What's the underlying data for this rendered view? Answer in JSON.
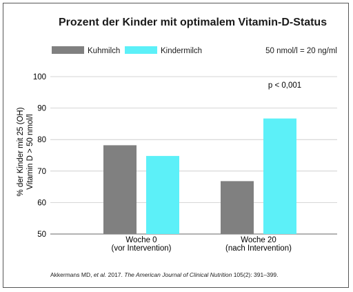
{
  "chart_data": {
    "type": "bar",
    "title": "Prozent der Kinder mit optimalem Vitamin-D-Status",
    "ylabel_line1": "% der Kinder mit 25 (OH)",
    "ylabel_line2": "Vitamin D > 50 nmol/l",
    "ylim": [
      50,
      100
    ],
    "yticks": [
      50,
      60,
      70,
      80,
      90,
      100
    ],
    "grid": true,
    "legend_placement": "top-left",
    "categories": [
      {
        "line1": "Woche 0",
        "line2": "(vor Intervention)"
      },
      {
        "line1": "Woche 20",
        "line2": "(nach Intervention)"
      }
    ],
    "series": [
      {
        "name": "Kuhmilch",
        "color": "#808080",
        "values": [
          78.2,
          66.8
        ]
      },
      {
        "name": "Kindermilch",
        "color": "#5cf0f8",
        "values": [
          74.8,
          86.7
        ]
      }
    ],
    "unit_note": "50 nmol/l = 20 ng/ml",
    "annotation": "p < 0,001"
  },
  "citation": {
    "authors": "Akkermans MD, ",
    "etal": "et al.",
    "year": " 2017. ",
    "journal": "The American Journal of Clinical Nutrition",
    "ref": " 105(2): 391–399."
  }
}
